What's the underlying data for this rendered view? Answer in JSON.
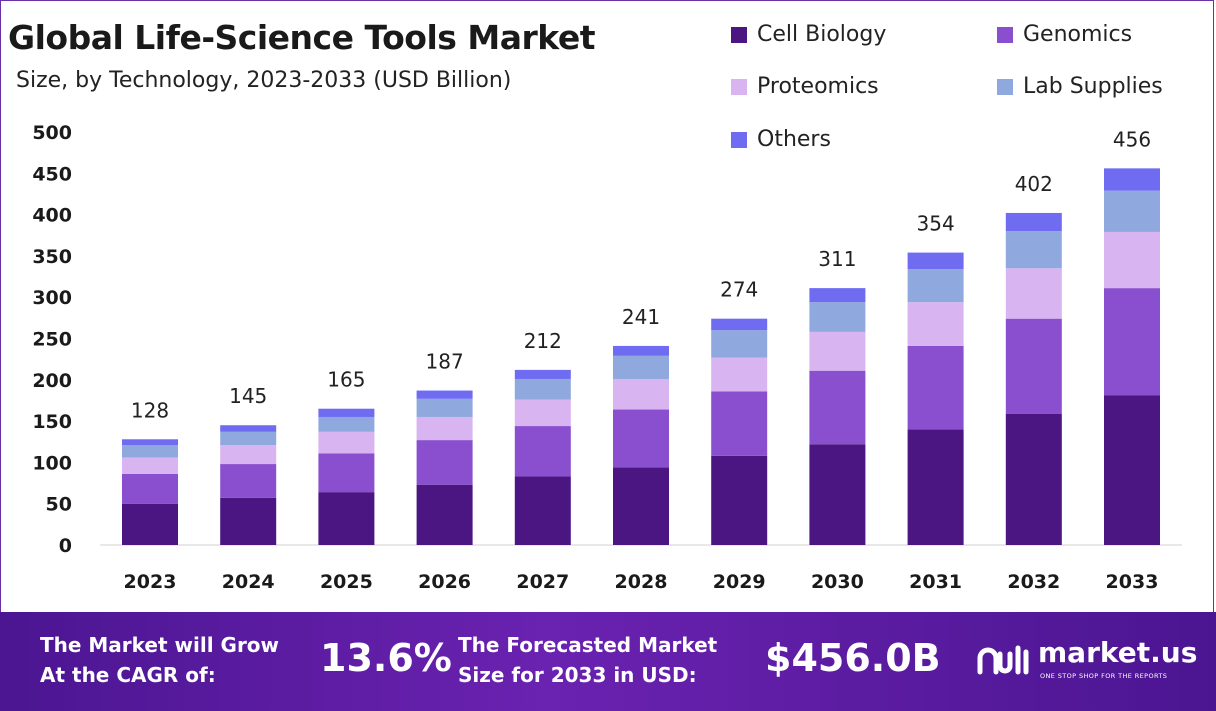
{
  "header": {
    "title": "Global Life-Science Tools Market",
    "subtitle": "Size, by Technology, 2023-2033 (USD Billion)"
  },
  "legend": [
    {
      "label": "Cell Biology",
      "color": "#4b1681"
    },
    {
      "label": "Genomics",
      "color": "#8a4fcf"
    },
    {
      "label": "Proteomics",
      "color": "#d8b4f0"
    },
    {
      "label": "Lab Supplies",
      "color": "#8fa8de"
    },
    {
      "label": "Others",
      "color": "#6f6cf2"
    }
  ],
  "chart_data": {
    "type": "bar",
    "stacked": true,
    "title": "Global Life-Science Tools Market",
    "subtitle": "Size, by Technology, 2023-2033 (USD Billion)",
    "categories": [
      "2023",
      "2024",
      "2025",
      "2026",
      "2027",
      "2028",
      "2029",
      "2030",
      "2031",
      "2032",
      "2033"
    ],
    "ylim": [
      0,
      500
    ],
    "yticks": [
      0,
      50,
      100,
      150,
      200,
      250,
      300,
      350,
      400,
      450,
      500
    ],
    "grid": false,
    "legend_position": "top-right",
    "totals": [
      128,
      145,
      165,
      187,
      212,
      241,
      274,
      311,
      354,
      402,
      456
    ],
    "series": [
      {
        "name": "Cell Biology",
        "color": "#4b1681",
        "values": [
          50,
          57,
          64,
          73,
          83,
          94,
          108,
          122,
          140,
          159,
          181
        ]
      },
      {
        "name": "Genomics",
        "color": "#8a4fcf",
        "values": [
          36,
          41,
          47,
          54,
          61,
          70,
          78,
          89,
          101,
          115,
          130
        ]
      },
      {
        "name": "Proteomics",
        "color": "#d8b4f0",
        "values": [
          20,
          23,
          26,
          28,
          32,
          37,
          41,
          47,
          53,
          61,
          68
        ]
      },
      {
        "name": "Lab Supplies",
        "color": "#8fa8de",
        "values": [
          15,
          16,
          18,
          22,
          25,
          28,
          33,
          36,
          40,
          45,
          50
        ]
      },
      {
        "name": "Others",
        "color": "#6f6cf2",
        "values": [
          7,
          8,
          10,
          10,
          11,
          12,
          14,
          17,
          20,
          22,
          27
        ]
      }
    ]
  },
  "footer": {
    "cagr_label_line1": "The Market will Grow",
    "cagr_label_line2": "At the CAGR of:",
    "cagr_value": "13.6%",
    "forecast_label_line1": "The Forecasted Market",
    "forecast_label_line2": "Size for 2033 in USD:",
    "forecast_value": "$456.0B",
    "brand_name": "market.us",
    "brand_tagline": "ONE STOP SHOP FOR THE REPORTS"
  }
}
